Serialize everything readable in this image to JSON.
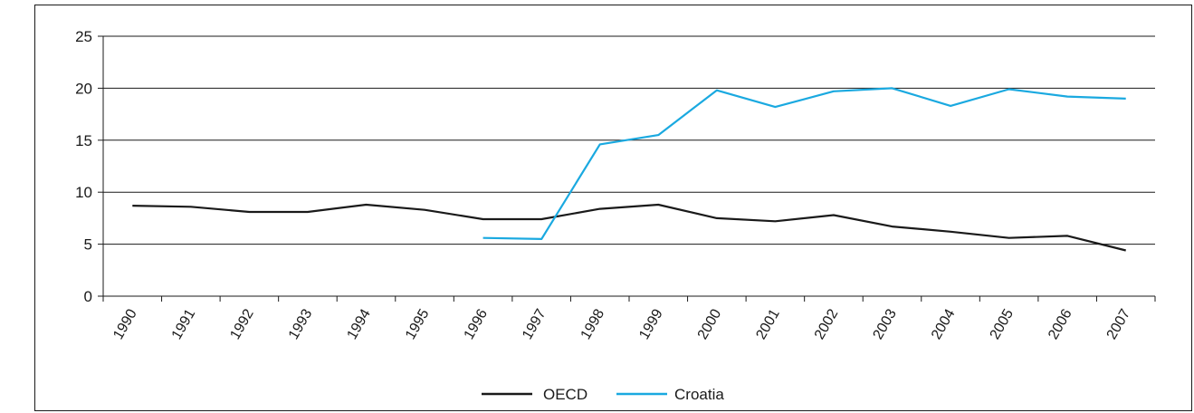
{
  "chart_data": {
    "type": "line",
    "title": "",
    "xlabel": "",
    "ylabel": "",
    "ylim": [
      0,
      25
    ],
    "yticks": [
      "0",
      "5",
      "10",
      "15",
      "20",
      "25"
    ],
    "grid": true,
    "legend_position": "bottom",
    "categories": [
      "1990",
      "1991",
      "1992",
      "1993",
      "1994",
      "1995",
      "1996",
      "1997",
      "1998",
      "1999",
      "2000",
      "2001",
      "2002",
      "2003",
      "2004",
      "2005",
      "2006",
      "2007"
    ],
    "series": [
      {
        "name": "OECD",
        "color": "#1a1a1a",
        "values": [
          8.7,
          8.6,
          8.1,
          8.1,
          8.8,
          8.3,
          7.4,
          7.4,
          8.4,
          8.8,
          7.5,
          7.2,
          7.8,
          6.7,
          6.2,
          5.6,
          5.8,
          4.4
        ]
      },
      {
        "name": "Croatia",
        "color": "#1aa9e0",
        "values": [
          null,
          null,
          null,
          null,
          null,
          null,
          5.6,
          5.5,
          14.6,
          15.5,
          19.8,
          18.2,
          19.7,
          20.0,
          18.3,
          19.9,
          19.2,
          19.0
        ]
      }
    ]
  }
}
